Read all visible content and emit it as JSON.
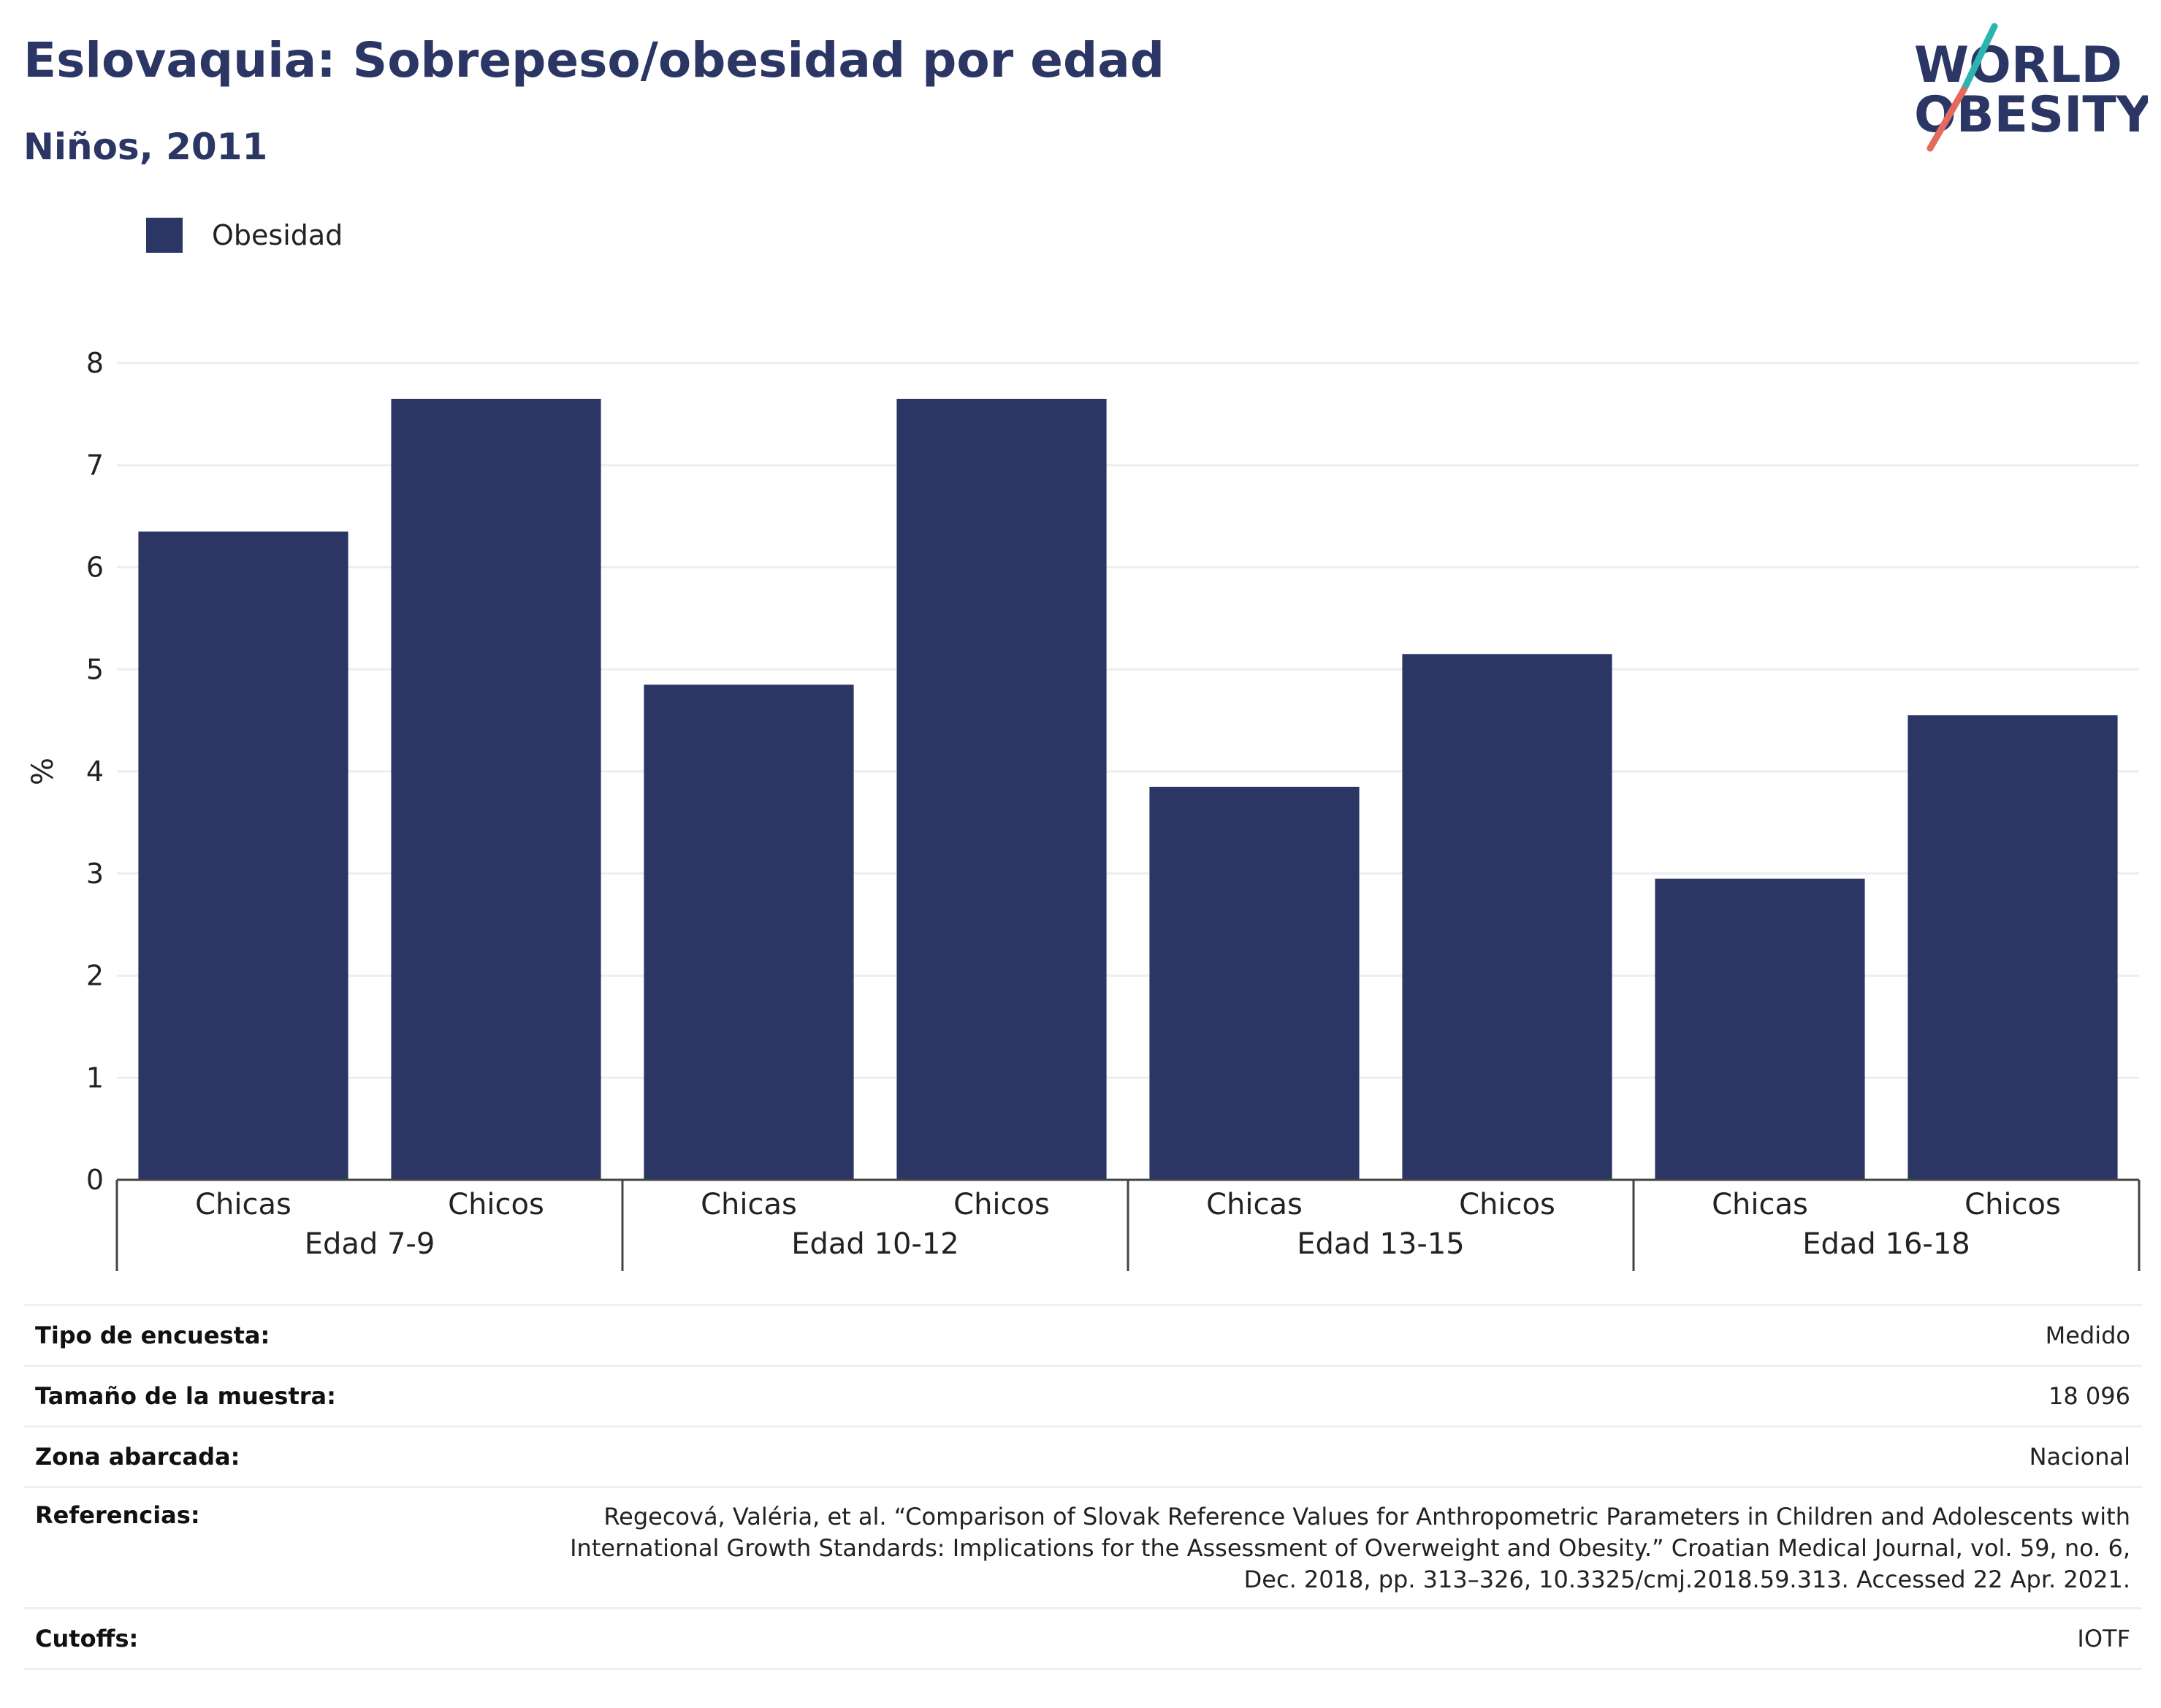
{
  "header": {
    "title": "Eslovaquia: Sobrepeso/obesidad por edad",
    "subtitle": "Niños, 2011"
  },
  "logo": {
    "line1": "WORLD",
    "line2": "OBESITY",
    "colors": {
      "text": "#2b3664",
      "slash_teal": "#2bb5b0",
      "slash_coral": "#e36a5c"
    }
  },
  "legend": {
    "items": [
      {
        "label": "Obesidad",
        "color": "#2b3664"
      }
    ]
  },
  "chart_data": {
    "type": "bar",
    "title": "Eslovaquia: Sobrepeso/obesidad por edad",
    "subtitle": "Niños, 2011",
    "xlabel": "",
    "ylabel": "%",
    "ylim": [
      0,
      8
    ],
    "yticks": [
      0,
      1,
      2,
      3,
      4,
      5,
      6,
      7,
      8
    ],
    "grid": true,
    "legend_placement": "top-left",
    "bar_color": "#2b3664",
    "groups": [
      {
        "label": "Edad 7-9",
        "categories": [
          "Chicas",
          "Chicos"
        ],
        "values": [
          6.35,
          7.65
        ]
      },
      {
        "label": "Edad 10-12",
        "categories": [
          "Chicas",
          "Chicos"
        ],
        "values": [
          4.85,
          7.65
        ]
      },
      {
        "label": "Edad 13-15",
        "categories": [
          "Chicas",
          "Chicos"
        ],
        "values": [
          3.85,
          5.15
        ]
      },
      {
        "label": "Edad 16-18",
        "categories": [
          "Chicas",
          "Chicos"
        ],
        "values": [
          2.95,
          4.55
        ]
      }
    ],
    "series": [
      {
        "name": "Obesidad",
        "values": [
          6.35,
          7.65,
          4.85,
          7.65,
          3.85,
          5.15,
          2.95,
          4.55
        ]
      }
    ]
  },
  "info_table": {
    "rows": [
      {
        "key": "Tipo de encuesta:",
        "value": "Medido"
      },
      {
        "key": "Tamaño de la muestra:",
        "value": "18 096"
      },
      {
        "key": "Zona abarcada:",
        "value": "Nacional"
      },
      {
        "key": "Referencias:",
        "value_lines": [
          "Regecová, Valéria, et al. “Comparison of Slovak Reference Values for Anthropometric Parameters in Children and Adolescents with",
          "International Growth Standards: Implications for the Assessment of Overweight and Obesity.” Croatian Medical Journal, vol. 59, no. 6,",
          "Dec. 2018, pp. 313–326, 10.3325/cmj.2018.59.313. Accessed 22 Apr. 2021."
        ]
      },
      {
        "key": "Cutoffs:",
        "value": "IOTF"
      }
    ]
  }
}
